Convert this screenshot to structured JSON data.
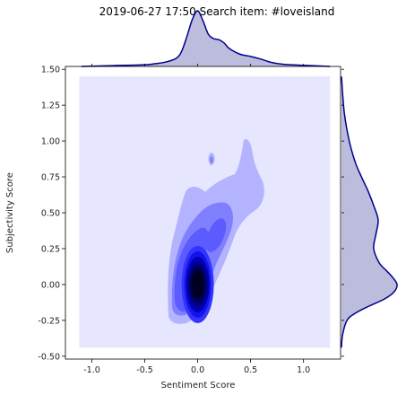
{
  "chart_data": {
    "type": "joint-kde",
    "title": "2019-06-27 17:50 Search item: #loveisland",
    "xlabel": "Sentiment Score",
    "ylabel": "Subjectivity Score",
    "xlim": [
      -1.25,
      1.35
    ],
    "ylim": [
      -0.52,
      1.52
    ],
    "x_ticks": [
      "-1.0",
      "-0.5",
      "0.0",
      "0.5",
      "1.0"
    ],
    "y_ticks": [
      "-0.50",
      "-0.25",
      "0.00",
      "0.25",
      "0.50",
      "0.75",
      "1.00",
      "1.25",
      "1.50"
    ],
    "x_tick_values": [
      -1.0,
      -0.5,
      0.0,
      0.5,
      1.0
    ],
    "y_tick_values": [
      -0.5,
      -0.25,
      0.0,
      0.25,
      0.5,
      0.75,
      1.0,
      1.25,
      1.5
    ],
    "kde_background_extent": {
      "x": [
        -1.12,
        1.25
      ],
      "y": [
        -0.44,
        1.45
      ]
    },
    "joint_peak": {
      "x": 0.0,
      "y": 0.0
    },
    "secondary_modes": [
      {
        "x": 0.25,
        "y": 0.35
      },
      {
        "x": 0.5,
        "y": 0.65
      },
      {
        "x": 0.2,
        "y": 0.9
      }
    ],
    "marginal_x": {
      "x": [
        -1.1,
        -0.9,
        -0.7,
        -0.5,
        -0.4,
        -0.3,
        -0.2,
        -0.15,
        -0.1,
        -0.05,
        0.0,
        0.05,
        0.1,
        0.15,
        0.2,
        0.25,
        0.3,
        0.4,
        0.5,
        0.6,
        0.7,
        0.8,
        1.0,
        1.25
      ],
      "density": [
        0.0,
        0.01,
        0.02,
        0.03,
        0.05,
        0.08,
        0.15,
        0.28,
        0.55,
        0.85,
        1.0,
        0.82,
        0.58,
        0.5,
        0.48,
        0.42,
        0.32,
        0.22,
        0.18,
        0.13,
        0.07,
        0.04,
        0.02,
        0.0
      ]
    },
    "marginal_y": {
      "y": [
        -0.44,
        -0.35,
        -0.25,
        -0.2,
        -0.15,
        -0.1,
        -0.05,
        0.0,
        0.05,
        0.1,
        0.15,
        0.25,
        0.35,
        0.45,
        0.55,
        0.65,
        0.75,
        0.85,
        1.0,
        1.2,
        1.45
      ],
      "density": [
        0.0,
        0.02,
        0.1,
        0.25,
        0.5,
        0.78,
        0.95,
        1.0,
        0.92,
        0.8,
        0.68,
        0.58,
        0.62,
        0.66,
        0.58,
        0.48,
        0.36,
        0.25,
        0.14,
        0.05,
        0.0
      ]
    },
    "colors": {
      "line": "#00008b",
      "fill": "#bcbcdc",
      "kde_levels": [
        "#e6e6ff",
        "#b3b3ff",
        "#8080ff",
        "#5b5bff",
        "#3434ff",
        "#1414e8",
        "#0000b8",
        "#000080",
        "#00004d",
        "#000022"
      ]
    }
  }
}
